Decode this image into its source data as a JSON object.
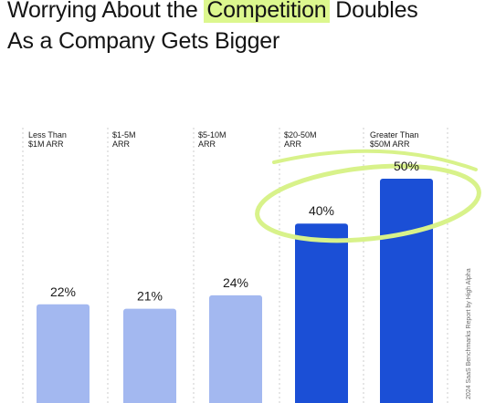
{
  "title": {
    "line1_before": "Worrying About the ",
    "line1_highlight": "Competition",
    "line1_after": " Doubles",
    "line2": "As a Company Gets Bigger"
  },
  "source": "2024 SaaS Benchmarks Report by High Alpha",
  "colors": {
    "light_bar": "#a3b8f0",
    "dark_bar": "#1b4fd6",
    "highlight": "#dcf78e",
    "circle": "#d8f28a",
    "gridline": "#cccccc"
  },
  "chart_data": {
    "type": "bar",
    "title": "Worrying About the Competition Doubles As a Company Gets Bigger",
    "categories": [
      [
        "Less Than",
        "$1M ARR"
      ],
      [
        "$1-5M",
        "ARR"
      ],
      [
        "$5-10M",
        "ARR"
      ],
      [
        "$20-50M",
        "ARR"
      ],
      [
        "Greater Than",
        "$50M ARR"
      ]
    ],
    "values": [
      22,
      21,
      24,
      40,
      50
    ],
    "value_labels": [
      "22%",
      "21%",
      "24%",
      "40%",
      "50%"
    ],
    "emphasized": [
      false,
      false,
      false,
      true,
      true
    ],
    "unit": "%",
    "ylim": [
      0,
      57
    ],
    "grid": "vertical dashed separators",
    "legend": "none",
    "annotation": "highlighter circle around the two largest bars"
  }
}
